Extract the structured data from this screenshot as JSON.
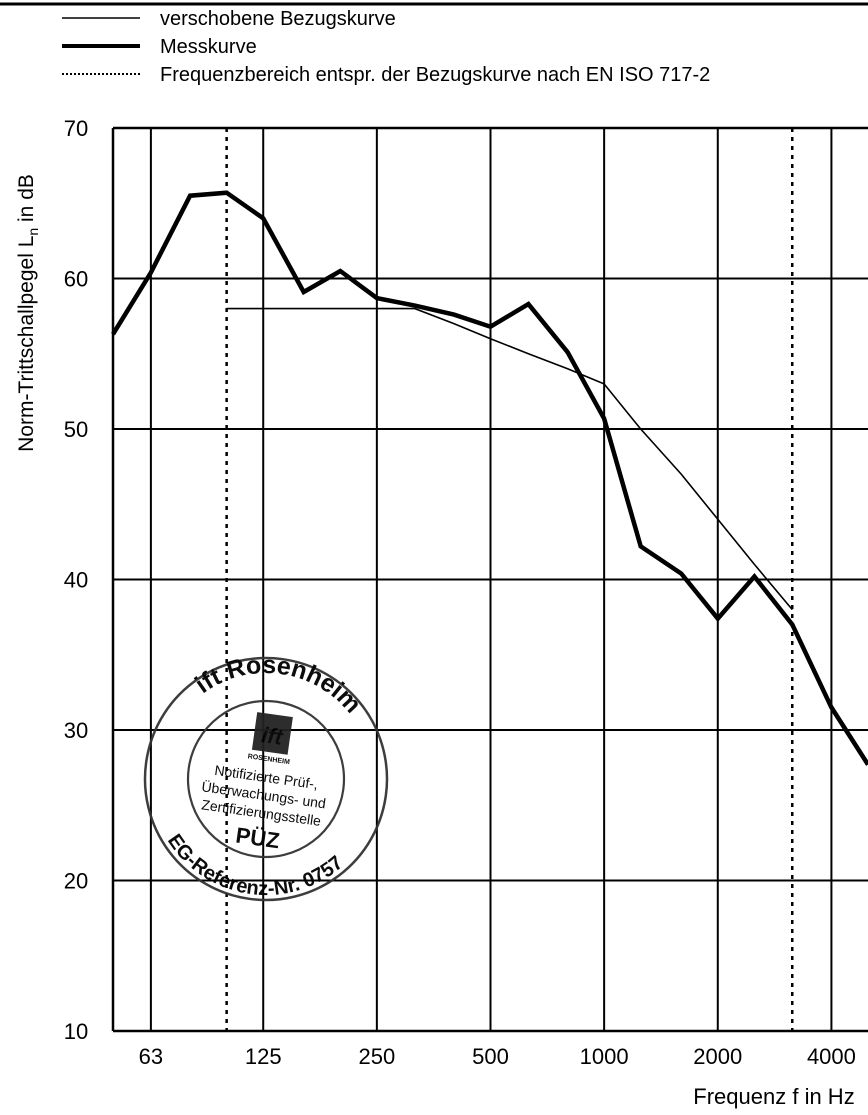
{
  "chart_data": {
    "type": "line",
    "xlabel": "Frequenz f in Hz",
    "ylabel": "Norm-Trittschallpegel L",
    "ylabel_subscript": "n",
    "ylabel_suffix": " in dB",
    "x_scale": "log",
    "xlim": [
      50,
      5000
    ],
    "ylim": [
      10,
      70
    ],
    "x_ticks": [
      63,
      125,
      250,
      500,
      1000,
      2000,
      4000
    ],
    "x_tick_labels": [
      "63",
      "125",
      "250",
      "500",
      "1000",
      "2000",
      "4000"
    ],
    "y_ticks": [
      10,
      20,
      30,
      40,
      50,
      60,
      70
    ],
    "y_tick_labels": [
      "10",
      "20",
      "30",
      "40",
      "50",
      "60",
      "70"
    ],
    "x_gridlines": [
      63,
      125,
      250,
      500,
      1000,
      2000,
      4000
    ],
    "grid": true,
    "legend_placement": "top",
    "legend": [
      {
        "label": "verschobene Bezugskurve",
        "style": "thin"
      },
      {
        "label": "Messkurve",
        "style": "thick"
      },
      {
        "label": "Frequenzbereich entspr. der Bezugskurve nach EN ISO 717-2",
        "style": "dotted"
      }
    ],
    "series": [
      {
        "name": "Messkurve",
        "x": [
          50,
          63,
          80,
          100,
          125,
          160,
          200,
          250,
          315,
          400,
          500,
          630,
          800,
          1000,
          1250,
          1600,
          2000,
          2500,
          3150,
          4000,
          5000
        ],
        "y": [
          56.3,
          60.4,
          65.5,
          65.7,
          64.0,
          59.1,
          60.5,
          58.7,
          58.2,
          57.6,
          56.8,
          58.3,
          55.1,
          50.7,
          42.2,
          40.4,
          37.4,
          40.2,
          37.0,
          31.5,
          27.7
        ]
      },
      {
        "name": "verschobene Bezugskurve",
        "x": [
          100,
          125,
          160,
          200,
          250,
          315,
          400,
          500,
          630,
          800,
          1000,
          1250,
          1600,
          2000,
          2500,
          3150
        ],
        "y": [
          58,
          58,
          58,
          58,
          58,
          58,
          57,
          56,
          55,
          54,
          53,
          50,
          47,
          44,
          41,
          38
        ]
      }
    ],
    "frequency_range_markers": [
      100,
      3150
    ]
  },
  "stamp": {
    "top_text": "ift Rosenheim",
    "logo_text": "ift",
    "logo_subtext": "ROSENHEIM",
    "inner_lines": [
      "Notifizierte Prüf-,",
      "Überwachungs- und",
      "Zertifizierungsstelle"
    ],
    "badge": "PÜZ",
    "bottom_text": "EG-Referenz-Nr. 0757"
  }
}
